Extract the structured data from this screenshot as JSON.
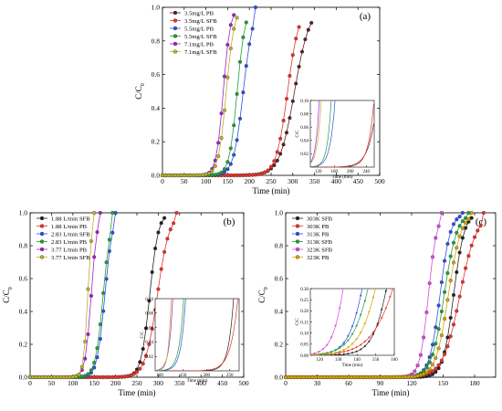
{
  "chart_data": [
    {
      "panel": "(a)",
      "type": "scatter",
      "xlabel": "Time (min)",
      "ylabel": "C/C",
      "ylabel_sub": "0",
      "xlim": [
        0,
        500
      ],
      "ylim": [
        0,
        1.0
      ],
      "xticks": [
        "0",
        "50",
        "100",
        "150",
        "200",
        "250",
        "300",
        "350",
        "400",
        "450",
        "500"
      ],
      "yticks": [
        "0.0",
        "0.2",
        "0.4",
        "0.6",
        "0.8",
        "1.0"
      ],
      "legend": "top-left",
      "series": [
        {
          "name": "3.5mg/L PB",
          "color": "#5a1f1f",
          "marker": "circle",
          "midpoint": 304,
          "width": 17,
          "x_end": 348
        },
        {
          "name": "3.5mg/L SFB",
          "color": "#e8302a",
          "marker": "circle",
          "midpoint": 288,
          "width": 13,
          "x_end": 320
        },
        {
          "name": "5.5mg/L PB",
          "color": "#2b4fe0",
          "marker": "circle",
          "midpoint": 186,
          "width": 11,
          "x_end": 215
        },
        {
          "name": "5.5mg/L SFB",
          "color": "#1e9e3a",
          "marker": "circle",
          "midpoint": 172,
          "width": 9,
          "x_end": 198
        },
        {
          "name": "7.1mg/L PB",
          "color": "#a020c8",
          "marker": "circle",
          "midpoint": 140,
          "width": 8,
          "x_end": 168
        },
        {
          "name": "7.1mg/L SFB",
          "color": "#b8b02a",
          "marker": "circle",
          "midpoint": 147,
          "width": 9,
          "x_end": 175
        }
      ],
      "inset": {
        "xlabel": "Time (min)",
        "ylabel": "C/C",
        "xlim": [
          100,
          260
        ],
        "ylim": [
          0,
          0.1
        ],
        "xticks": [
          "120",
          "160",
          "200",
          "240"
        ],
        "yticks": [
          "0.02",
          "0.04",
          "0.06",
          "0.08",
          "0.10"
        ]
      }
    },
    {
      "panel": "(b)",
      "type": "scatter",
      "xlabel": "Time (min)",
      "ylabel": "C/C",
      "ylabel_sub": "0",
      "xlim": [
        0,
        500
      ],
      "ylim": [
        0,
        1.0
      ],
      "xticks": [
        "0",
        "50",
        "100",
        "150",
        "200",
        "250",
        "300",
        "350",
        "400",
        "450",
        "500"
      ],
      "yticks": [
        "0.0",
        "0.2",
        "0.4",
        "0.6",
        "0.8",
        "1.0"
      ],
      "legend": "top-left",
      "series": [
        {
          "name": "1.88 L/min SFB",
          "color": "#222222",
          "marker": "circle",
          "midpoint": 280,
          "width": 10,
          "x_end": 320
        },
        {
          "name": "1.88 L/min PB",
          "color": "#e8302a",
          "marker": "circle",
          "midpoint": 298,
          "width": 14,
          "x_end": 345
        },
        {
          "name": "2.83 L/min SFB",
          "color": "#2b4fe0",
          "marker": "circle",
          "midpoint": 175,
          "width": 9,
          "x_end": 200
        },
        {
          "name": "2.83 L/min PB",
          "color": "#1e9e3a",
          "marker": "circle",
          "midpoint": 171,
          "width": 9,
          "x_end": 195
        },
        {
          "name": "3.77 L/min PB",
          "color": "#a020c8",
          "marker": "circle",
          "midpoint": 143,
          "width": 7,
          "x_end": 165
        },
        {
          "name": "3.77 L/min SFB",
          "color": "#b8b02a",
          "marker": "circle",
          "midpoint": 135,
          "width": 5,
          "x_end": 150
        }
      ],
      "inset": {
        "xlabel": "Time (min)",
        "ylabel": "C/C",
        "xlim": [
          90,
          270
        ],
        "ylim": [
          0,
          0.1
        ],
        "xticks": [
          "100",
          "150",
          "200",
          "250"
        ],
        "yticks": [
          "0.02",
          "0.04",
          "0.06",
          "0.08",
          "0.10"
        ]
      }
    },
    {
      "panel": "(c)",
      "type": "scatter",
      "xlabel": "Time (min)",
      "ylabel": "C/C",
      "ylabel_sub": "0",
      "xlim": [
        0,
        200
      ],
      "ylim": [
        0,
        1.0
      ],
      "xticks": [
        "0",
        "30",
        "60",
        "90",
        "120",
        "150",
        "180"
      ],
      "yticks": [
        "0.0",
        "0.2",
        "0.4",
        "0.6",
        "0.8",
        "1.0"
      ],
      "legend": "top-left",
      "series": [
        {
          "name": "303K SFB",
          "color": "#222222",
          "marker": "circle",
          "midpoint": 160,
          "width": 5,
          "x_end": 180
        },
        {
          "name": "303K PB",
          "color": "#e8302a",
          "marker": "circle",
          "midpoint": 166,
          "width": 8,
          "x_end": 190
        },
        {
          "name": "313K PB",
          "color": "#2b4fe0",
          "marker": "circle",
          "midpoint": 147,
          "width": 5,
          "x_end": 170
        },
        {
          "name": "313K SFB",
          "color": "#1e9e3a",
          "marker": "circle",
          "midpoint": 151,
          "width": 6,
          "x_end": 175
        },
        {
          "name": "323K SFB",
          "color": "#d846e0",
          "marker": "circle",
          "midpoint": 136,
          "width": 4,
          "x_end": 150
        },
        {
          "name": "323K PB",
          "color": "#d4a200",
          "marker": "circle",
          "midpoint": 155,
          "width": 6,
          "x_end": 178
        }
      ],
      "inset": {
        "xlabel": "Time (min)",
        "ylabel": "C/C",
        "xlim": [
          115,
          160
        ],
        "ylim": [
          0,
          0.3
        ],
        "xticks": [
          "120",
          "130",
          "140",
          "150",
          "160"
        ],
        "yticks": [
          "0.00",
          "0.05",
          "0.10",
          "0.15",
          "0.20",
          "0.25",
          "0.30"
        ]
      }
    }
  ]
}
